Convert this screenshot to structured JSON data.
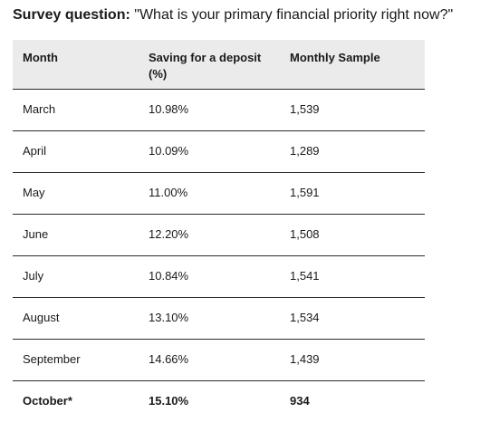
{
  "survey": {
    "label": "Survey question:",
    "question": " \"What is your primary financial priority right now?\""
  },
  "table": {
    "headers": {
      "month": "Month",
      "saving": "Saving for a deposit (%)",
      "sample": "Monthly Sample"
    },
    "rows": [
      {
        "month": "March",
        "saving": "10.98%",
        "sample": "1,539"
      },
      {
        "month": "April",
        "saving": "10.09%",
        "sample": "1,289"
      },
      {
        "month": "May",
        "saving": "11.00%",
        "sample": "1,591"
      },
      {
        "month": "June",
        "saving": "12.20%",
        "sample": "1,508"
      },
      {
        "month": "July",
        "saving": "10.84%",
        "sample": "1,541"
      },
      {
        "month": "August",
        "saving": "13.10%",
        "sample": "1,534"
      },
      {
        "month": "September",
        "saving": "14.66%",
        "sample": "1,439"
      },
      {
        "month": "October*",
        "saving": "15.10%",
        "sample": "934"
      }
    ]
  }
}
